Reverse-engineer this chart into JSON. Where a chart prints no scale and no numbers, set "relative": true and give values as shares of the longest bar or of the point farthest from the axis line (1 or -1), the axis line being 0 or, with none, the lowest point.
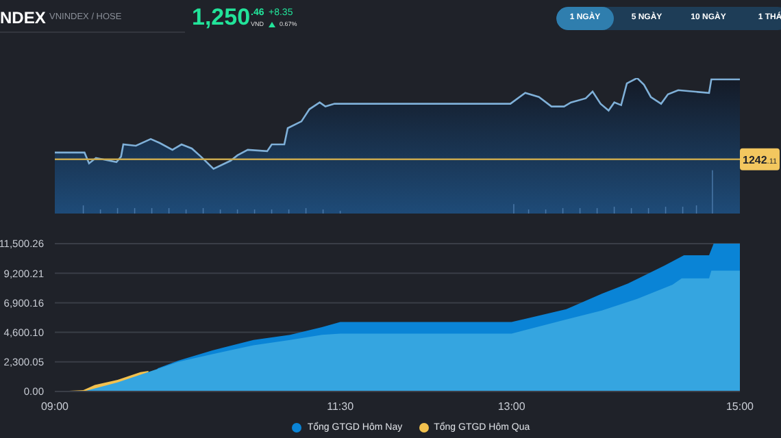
{
  "chart_data": [
    {
      "type": "area",
      "title": "NDEX",
      "subtitle": "VNINDEX / HOSE",
      "annotations": [
        "1,250.46",
        "VND",
        "+8.35",
        "0.67%",
        "1 NGÀY",
        "5 NGÀY",
        "10 NGÀY",
        "1 THÁ",
        "1242.11"
      ],
      "relative": true,
      "xlim": [
        9,
        15
      ],
      "grid": false,
      "ref_lines": [
        {
          "axis": "y",
          "value": 0.4,
          "color": "#c9a94e"
        }
      ],
      "series": [
        {
          "color": "#7fb0d8",
          "x": [
            9,
            9.26,
            9.3,
            9.36,
            9.54,
            9.58,
            9.6,
            9.71,
            9.84,
            9.92,
            10.03,
            10.11,
            10.2,
            10.28,
            10.39,
            10.54,
            10.6,
            10.69,
            10.86,
            10.9,
            11.01,
            11.04,
            11.16,
            11.23,
            11.32,
            11.37,
            11.45,
            12.99,
            13.12,
            13.24,
            13.35,
            13.46,
            13.52,
            13.65,
            13.71,
            13.78,
            13.85,
            13.9,
            13.96,
            14.01,
            14.1,
            14.16,
            14.22,
            14.31,
            14.37,
            14.46,
            14.73,
            14.75,
            15
          ],
          "values": [
            0.45,
            0.45,
            0.37,
            0.41,
            0.38,
            0.42,
            0.51,
            0.5,
            0.55,
            0.52,
            0.47,
            0.51,
            0.48,
            0.42,
            0.33,
            0.39,
            0.43,
            0.47,
            0.46,
            0.51,
            0.51,
            0.63,
            0.68,
            0.77,
            0.82,
            0.79,
            0.81,
            0.81,
            0.89,
            0.86,
            0.79,
            0.79,
            0.82,
            0.85,
            0.9,
            0.81,
            0.76,
            0.82,
            0.8,
            0.96,
            1,
            0.95,
            0.86,
            0.81,
            0.88,
            0.91,
            0.89,
            0.99,
            0.99
          ]
        },
        {
          "type": "bar",
          "color": "#4a78a8",
          "x": [
            9.25,
            9.4,
            9.55,
            9.7,
            9.85,
            10.0,
            10.15,
            10.3,
            10.45,
            10.6,
            10.75,
            10.9,
            11.05,
            11.2,
            11.35,
            11.5,
            13.02,
            13.15,
            13.3,
            13.45,
            13.6,
            13.75,
            13.9,
            14.05,
            14.2,
            14.35,
            14.5,
            14.62,
            14.76
          ],
          "values": [
            0.06,
            0.03,
            0.04,
            0.04,
            0.04,
            0.04,
            0.03,
            0.04,
            0.03,
            0.03,
            0.03,
            0.03,
            0.03,
            0.04,
            0.03,
            0.02,
            0.07,
            0.03,
            0.03,
            0.04,
            0.04,
            0.04,
            0.05,
            0.04,
            0.04,
            0.05,
            0.05,
            0.06,
            0.32
          ]
        }
      ]
    },
    {
      "type": "area",
      "xlim": [
        9,
        15
      ],
      "xticks": [
        {
          "value": 9,
          "label": "09:00"
        },
        {
          "value": 11.5,
          "label": "11:30"
        },
        {
          "value": 13,
          "label": "13:00"
        },
        {
          "value": 15,
          "label": "15:00"
        }
      ],
      "ylim": [
        0,
        11500.26
      ],
      "yticks": [
        {
          "value": 0,
          "label": "0.00"
        },
        {
          "value": 2300.05,
          "label": "2,300.05"
        },
        {
          "value": 4600.1,
          "label": "4,600.10"
        },
        {
          "value": 6900.16,
          "label": "6,900.16"
        },
        {
          "value": 9200.21,
          "label": "9,200.21"
        },
        {
          "value": 11500.26,
          "label": "11,500.26"
        }
      ],
      "grid": "y",
      "legend": "bottom",
      "series": [
        {
          "name": "Tổng GTGD Hôm Nay",
          "color": "#0a84d6",
          "x": [
            9.9,
            10.08,
            10.38,
            10.74,
            11.06,
            11.34,
            11.5,
            13,
            13.48,
            13.79,
            14.02,
            14.34,
            14.51,
            14.73,
            14.77,
            15
          ],
          "values": [
            1800,
            2400,
            3200,
            4000,
            4400,
            5000,
            5400,
            5400,
            6400,
            7600,
            8400,
            9800,
            10600,
            10600,
            11500,
            11500
          ]
        },
        {
          "name": "Tổng GTGD Hôm Qua",
          "color": "#f2c14e",
          "x": [
            9,
            9.25,
            9.35,
            9.55,
            9.75,
            9.82
          ],
          "values": [
            0,
            100,
            500,
            900,
            1500,
            1600
          ]
        },
        {
          "color": "#35a5e0",
          "x": [
            9,
            9.25,
            9.55,
            9.75,
            10.08,
            10.38,
            10.74,
            11.06,
            11.34,
            11.5,
            13,
            13.48,
            13.79,
            14.1,
            14.41,
            14.49,
            14.73,
            14.75,
            15
          ],
          "values": [
            0,
            0,
            700,
            1300,
            2300,
            2900,
            3600,
            4000,
            4400,
            4500,
            4500,
            5600,
            6300,
            7200,
            8300,
            8800,
            8800,
            9400,
            9400
          ]
        }
      ]
    }
  ]
}
